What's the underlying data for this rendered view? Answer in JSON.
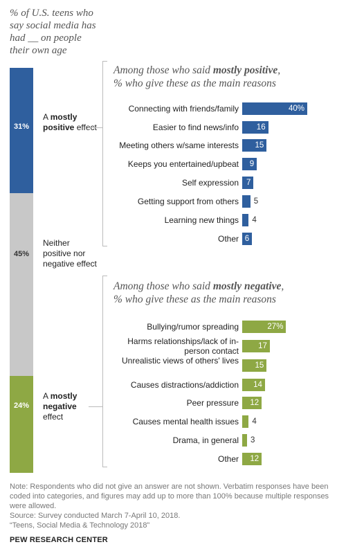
{
  "header": {
    "title": "% of U.S. teens who\nsay social media has\nhad __ on people\ntheir own age"
  },
  "colors": {
    "positive": "#2f5f9e",
    "neither": "#c8c8c8",
    "negative": "#8ea844",
    "bracket": "#bbbbbb"
  },
  "stacked": [
    {
      "value": 31,
      "value_label": "31%",
      "label_pre": "A ",
      "label_bold": "mostly positive",
      "label_post": " effect"
    },
    {
      "value": 45,
      "value_label": "45%",
      "label_pre": "Neither positive nor negative effect",
      "label_bold": "",
      "label_post": ""
    },
    {
      "value": 24,
      "value_label": "24%",
      "label_pre": "A ",
      "label_bold": "mostly negative",
      "label_post": " effect"
    }
  ],
  "chart_data": [
    {
      "type": "bar",
      "title_pre": "Among those who said ",
      "title_bold": "mostly positive",
      "title_post": ",",
      "subtitle": "% who give these as the main reasons",
      "categories": [
        "Connecting with friends/family",
        "Easier to find news/info",
        "Meeting others w/same interests",
        "Keeps you entertained/upbeat",
        "Self expression",
        "Getting support from others",
        "Learning new things",
        "Other"
      ],
      "values": [
        40,
        16,
        15,
        9,
        7,
        5,
        4,
        6
      ],
      "value_labels": [
        "40%",
        "16",
        "15",
        "9",
        "7",
        "5",
        "4",
        "6"
      ]
    },
    {
      "type": "bar",
      "title_pre": "Among those who said ",
      "title_bold": "mostly negative",
      "title_post": ",",
      "subtitle": "% who give these as the main reasons",
      "categories": [
        "Bullying/rumor spreading",
        "Harms relationships/lack of in-person contact",
        "Unrealistic views of others' lives",
        "Causes distractions/addiction",
        "Peer pressure",
        "Causes mental health issues",
        "Drama, in general",
        "Other"
      ],
      "values": [
        27,
        17,
        15,
        14,
        12,
        4,
        3,
        12
      ],
      "value_labels": [
        "27%",
        "17",
        "15",
        "14",
        "12",
        "4",
        "3",
        "12"
      ]
    }
  ],
  "footer": {
    "note": "Note: Respondents who did not give an answer are not shown. Verbatim responses have been coded into categories, and figures may add up to more than 100% because multiple responses were allowed.",
    "source": "Source: Survey conducted March 7-April 10, 2018.",
    "report": "“Teens, Social Media & Technology 2018”",
    "org": "PEW RESEARCH CENTER"
  }
}
